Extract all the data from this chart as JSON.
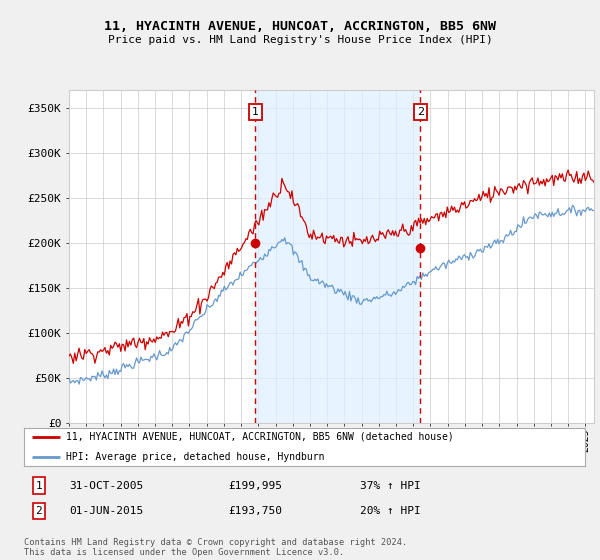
{
  "title": "11, HYACINTH AVENUE, HUNCOAT, ACCRINGTON, BB5 6NW",
  "subtitle": "Price paid vs. HM Land Registry's House Price Index (HPI)",
  "ylabel_ticks": [
    "£0",
    "£50K",
    "£100K",
    "£150K",
    "£200K",
    "£250K",
    "£300K",
    "£350K"
  ],
  "ylim": [
    0,
    370000
  ],
  "xlim_start": 1995.0,
  "xlim_end": 2025.5,
  "sale1_date": 2005.83,
  "sale1_price": 199995,
  "sale2_date": 2015.42,
  "sale2_price": 193750,
  "legend_line1": "11, HYACINTH AVENUE, HUNCOAT, ACCRINGTON, BB5 6NW (detached house)",
  "legend_line2": "HPI: Average price, detached house, Hyndburn",
  "footer": "Contains HM Land Registry data © Crown copyright and database right 2024.\nThis data is licensed under the Open Government Licence v3.0.",
  "red_color": "#cc0000",
  "blue_color": "#6699cc",
  "shade_color": "#ddeeff",
  "background_color": "#f0f0f0",
  "plot_bg_color": "#ffffff",
  "grid_color": "#cccccc",
  "vline_color": "#cc0000"
}
